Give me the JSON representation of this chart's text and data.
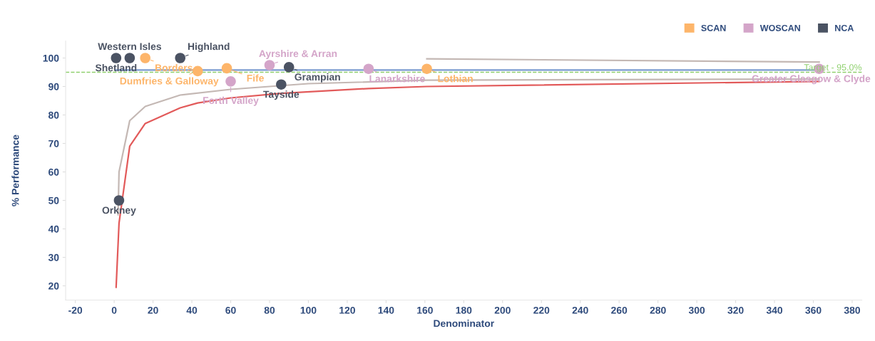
{
  "chart_data": {
    "type": "scatter",
    "xlabel": "Denominator",
    "ylabel": "% Performance",
    "xlim": [
      -25,
      385
    ],
    "ylim": [
      15,
      106
    ],
    "xticks": [
      -20,
      0,
      20,
      40,
      60,
      80,
      100,
      120,
      140,
      160,
      180,
      200,
      220,
      240,
      260,
      280,
      300,
      320,
      340,
      360,
      380
    ],
    "yticks": [
      20,
      30,
      40,
      50,
      60,
      70,
      80,
      90,
      100
    ],
    "grid": false,
    "legend": "top right",
    "series": [
      {
        "name": "SCAN",
        "marker": "circle",
        "color": "#fdb56a",
        "x": [
          16,
          43,
          58,
          161
        ],
        "values": [
          100,
          95.4,
          96.4,
          96.2
        ]
      },
      {
        "name": "WOSCAN",
        "marker": "circle",
        "color": "#d4a5c9",
        "x": [
          60,
          80,
          131,
          363
        ],
        "values": [
          91.8,
          97.5,
          96.2,
          96.2
        ]
      },
      {
        "name": "NCA",
        "marker": "circle",
        "color": "#4b5363",
        "x": [
          1,
          8,
          34,
          90,
          86,
          2.5
        ],
        "values": [
          100,
          100,
          100,
          96.8,
          90.7,
          50
        ]
      },
      {
        "type": "line",
        "marker": "none",
        "color": "#7a9ad0",
        "x": [
          1,
          363
        ],
        "values": [
          95.8,
          95.8
        ]
      },
      {
        "type": "line",
        "marker": "none",
        "color": "#c4b8b4",
        "x": [
          161,
          363
        ],
        "values": [
          99.7,
          98.6
        ]
      },
      {
        "type": "line",
        "marker": "none",
        "color": "#c4b8b4",
        "x": [
          2,
          2.5,
          8,
          16,
          34,
          60,
          100,
          161,
          363
        ],
        "values": [
          45,
          60,
          78,
          83,
          87,
          89,
          91,
          92.2,
          92.6
        ]
      },
      {
        "type": "line",
        "marker": "none",
        "color": "#e25a5a",
        "x": [
          1,
          2.5,
          8,
          16,
          34,
          43,
          60,
          86,
          131,
          161,
          363
        ],
        "values": [
          19.5,
          42,
          69,
          77,
          82.5,
          84.2,
          86,
          87.6,
          89.3,
          90,
          91.8
        ]
      }
    ],
    "ref_lines": [
      {
        "axis": "y",
        "value": 95,
        "label": "Target - 95.0%",
        "color": "#8fd06e",
        "line_style": "dashed"
      }
    ],
    "annotations": [
      {
        "text": "Shetland",
        "x": 1,
        "y": 100
      },
      {
        "text": "Western Isles",
        "x": 8,
        "y": 100
      },
      {
        "text": "Borders",
        "x": 16,
        "y": 100
      },
      {
        "text": "Highland",
        "x": 34,
        "y": 100
      },
      {
        "text": "Dumfries & Galloway",
        "x": 43,
        "y": 95.4
      },
      {
        "text": "Fife",
        "x": 58,
        "y": 96.4
      },
      {
        "text": "Forth Valley",
        "x": 60,
        "y": 91.8
      },
      {
        "text": "Ayrshire & Arran",
        "x": 80,
        "y": 97.5
      },
      {
        "text": "Grampian",
        "x": 90,
        "y": 96.8
      },
      {
        "text": "Tayside",
        "x": 86,
        "y": 90.7
      },
      {
        "text": "Lanarkshire",
        "x": 131,
        "y": 96.2
      },
      {
        "text": "Lothian",
        "x": 161,
        "y": 96.2
      },
      {
        "text": "Greater Glasgow & Clyde",
        "x": 363,
        "y": 96.2
      },
      {
        "text": "Orkney",
        "x": 2.5,
        "y": 50
      }
    ]
  }
}
